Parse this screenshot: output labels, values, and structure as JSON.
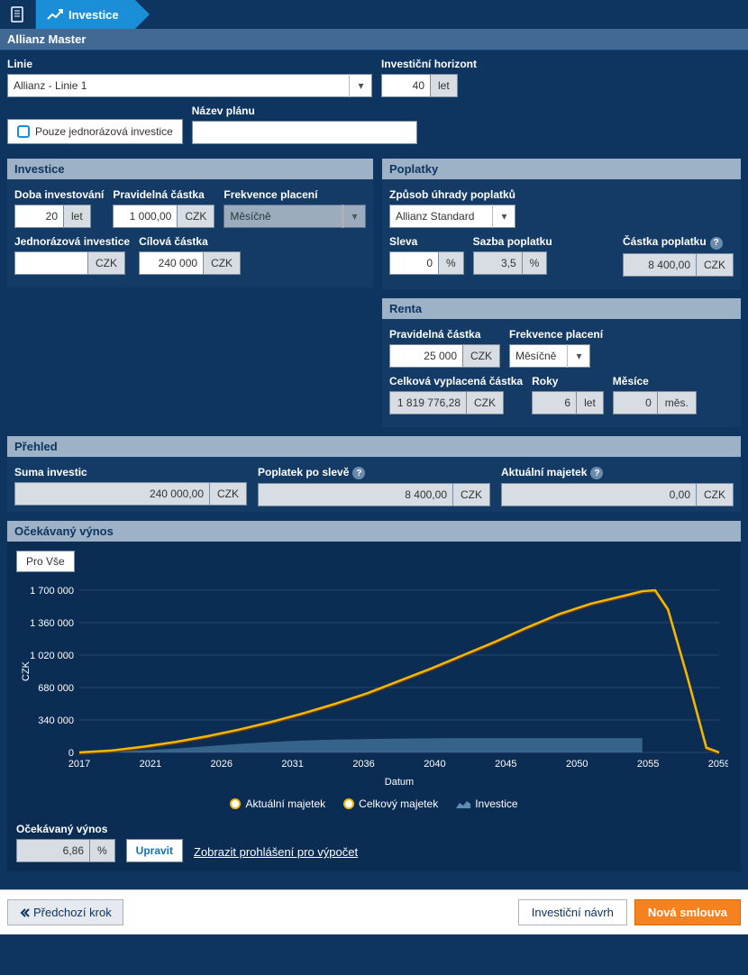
{
  "tabs": {
    "active": "Investice"
  },
  "master": {
    "title": "Allianz Master",
    "linie_label": "Linie",
    "linie_value": "Allianz - Linie 1",
    "horizon_label": "Investiční horizont",
    "horizon_value": "40",
    "horizon_unit": "let",
    "only_once_label": "Pouze jednorázová investice",
    "plan_label": "Název plánu",
    "plan_value": ""
  },
  "invest": {
    "title": "Investice",
    "duration_label": "Doba investování",
    "duration_value": "20",
    "duration_unit": "let",
    "regular_label": "Pravidelná částka",
    "regular_value": "1 000,00",
    "regular_unit": "CZK",
    "freq_label": "Frekvence placení",
    "freq_value": "Měsíčně",
    "once_label": "Jednorázová investice",
    "once_value": "",
    "once_unit": "CZK",
    "target_label": "Cílová částka",
    "target_value": "240 000",
    "target_unit": "CZK"
  },
  "fees": {
    "title": "Poplatky",
    "method_label": "Způsob úhrady poplatků",
    "method_value": "Allianz Standard",
    "discount_label": "Sleva",
    "discount_value": "0",
    "discount_unit": "%",
    "rate_label": "Sazba poplatku",
    "rate_value": "3,5",
    "rate_unit": "%",
    "amount_label": "Částka poplatku",
    "amount_value": "8 400,00",
    "amount_unit": "CZK"
  },
  "renta": {
    "title": "Renta",
    "regular_label": "Pravidelná částka",
    "regular_value": "25 000",
    "regular_unit": "CZK",
    "freq_label": "Frekvence placení",
    "freq_value": "Měsíčně",
    "total_label": "Celková vyplacená částka",
    "total_value": "1 819 776,28",
    "total_unit": "CZK",
    "years_label": "Roky",
    "years_value": "6",
    "years_unit": "let",
    "months_label": "Měsíce",
    "months_value": "0",
    "months_unit": "měs."
  },
  "overview": {
    "title": "Přehled",
    "sum_label": "Suma investic",
    "sum_value": "240 000,00",
    "sum_unit": "CZK",
    "fee_label": "Poplatek po slevě",
    "fee_value": "8 400,00",
    "fee_unit": "CZK",
    "current_label": "Aktuální majetek",
    "current_value": "0,00",
    "current_unit": "CZK"
  },
  "chart": {
    "title": "Očekávaný výnos",
    "filter_btn": "Pro Vše",
    "y_label": "CZK",
    "x_label": "Datum",
    "y_ticks": [
      "0",
      "340 000",
      "680 000",
      "1 020 000",
      "1 360 000",
      "1 700 000"
    ],
    "x_ticks": [
      "2017",
      "2021",
      "2026",
      "2031",
      "2036",
      "2040",
      "2045",
      "2050",
      "2055",
      "2059"
    ],
    "legend": {
      "a": "Aktuální majetek",
      "b": "Celkový majetek",
      "c": "Investice"
    },
    "series_line": [
      [
        0,
        0
      ],
      [
        0.05,
        20000
      ],
      [
        0.1,
        60000
      ],
      [
        0.15,
        110000
      ],
      [
        0.2,
        170000
      ],
      [
        0.25,
        240000
      ],
      [
        0.3,
        320000
      ],
      [
        0.35,
        410000
      ],
      [
        0.4,
        510000
      ],
      [
        0.45,
        620000
      ],
      [
        0.5,
        750000
      ],
      [
        0.55,
        880000
      ],
      [
        0.6,
        1020000
      ],
      [
        0.65,
        1160000
      ],
      [
        0.7,
        1310000
      ],
      [
        0.75,
        1450000
      ],
      [
        0.8,
        1560000
      ],
      [
        0.85,
        1640000
      ],
      [
        0.88,
        1690000
      ],
      [
        0.9,
        1700000
      ],
      [
        0.92,
        1500000
      ],
      [
        0.95,
        800000
      ],
      [
        0.98,
        50000
      ],
      [
        1.0,
        0
      ]
    ],
    "series_area": [
      [
        0,
        0
      ],
      [
        0.05,
        8000
      ],
      [
        0.1,
        22000
      ],
      [
        0.15,
        40000
      ],
      [
        0.2,
        65000
      ],
      [
        0.25,
        90000
      ],
      [
        0.3,
        110000
      ],
      [
        0.35,
        125000
      ],
      [
        0.4,
        135000
      ],
      [
        0.45,
        140000
      ],
      [
        0.5,
        145000
      ],
      [
        0.55,
        148000
      ],
      [
        0.6,
        150000
      ],
      [
        0.65,
        150000
      ],
      [
        0.7,
        150000
      ],
      [
        0.75,
        150000
      ],
      [
        0.8,
        150000
      ],
      [
        0.85,
        150000
      ],
      [
        0.88,
        150000
      ]
    ],
    "y_max": 1700000,
    "colors": {
      "line_yellow": "#f2b900",
      "line_dark": "#6a3b10",
      "area": "#5a8fb5",
      "grid": "#3f638a",
      "text": "#ffffff"
    },
    "yield_label": "Očekávaný výnos",
    "yield_value": "6,86",
    "yield_unit": "%",
    "edit_btn": "Upravit",
    "disclaimer_link": "Zobrazit prohlášení pro výpočet"
  },
  "footer": {
    "prev": "Předchozí krok",
    "proposal": "Investiční návrh",
    "contract": "Nová smlouva"
  }
}
